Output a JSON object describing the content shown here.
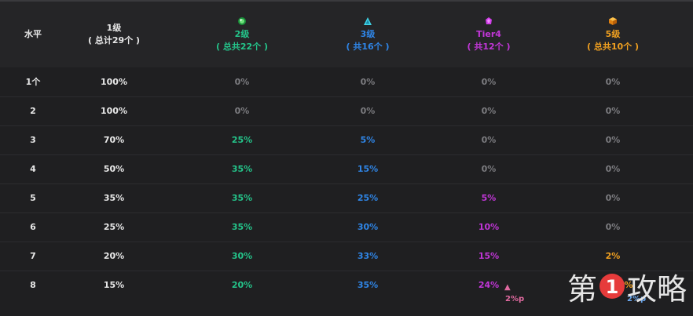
{
  "header": {
    "level_label": "水平",
    "tiers": [
      {
        "title": "1级",
        "subtitle": "( 总计29个 )",
        "color": "#e8e8e8",
        "icon": "none"
      },
      {
        "title": "2级",
        "subtitle": "( 总共22个 )",
        "color": "#24c48a",
        "icon": "green-orb-icon"
      },
      {
        "title": "3级",
        "subtitle": "( 共16个 )",
        "color": "#2f86e8",
        "icon": "cyan-triangle-icon"
      },
      {
        "title": "Tier4",
        "subtitle": "( 共12个 )",
        "color": "#c236d8",
        "icon": "purple-gem-icon"
      },
      {
        "title": "5级",
        "subtitle": "( 总共10个 )",
        "color": "#f0a020",
        "icon": "orange-cube-icon"
      }
    ]
  },
  "rows": [
    {
      "level": "1个",
      "t1": "100%",
      "t2": "0%",
      "t3": "0%",
      "t4": "0%",
      "t5": "0%"
    },
    {
      "level": "2",
      "t1": "100%",
      "t2": "0%",
      "t3": "0%",
      "t4": "0%",
      "t5": "0%"
    },
    {
      "level": "3",
      "t1": "70%",
      "t2": "25%",
      "t3": "5%",
      "t4": "0%",
      "t5": "0%"
    },
    {
      "level": "4",
      "t1": "50%",
      "t2": "35%",
      "t3": "15%",
      "t4": "0%",
      "t5": "0%"
    },
    {
      "level": "5",
      "t1": "35%",
      "t2": "35%",
      "t3": "25%",
      "t4": "5%",
      "t5": "0%"
    },
    {
      "level": "6",
      "t1": "25%",
      "t2": "35%",
      "t3": "30%",
      "t4": "10%",
      "t5": "0%"
    },
    {
      "level": "7",
      "t1": "20%",
      "t2": "30%",
      "t3": "33%",
      "t4": "15%",
      "t5": "2%"
    },
    {
      "level": "8",
      "t1": "15%",
      "t2": "20%",
      "t3": "35%",
      "t4": "24%",
      "t5": "%"
    }
  ],
  "row8_extras": {
    "a": "2%p",
    "b": "2%p"
  },
  "watermark": {
    "left": "第",
    "circle": "1",
    "right": "攻略"
  },
  "colors": {
    "background": "#1f1f21",
    "header_bg": "#252527",
    "zero_gray": "#7c7c80",
    "tier2": "#24c48a",
    "tier3": "#2f86e8",
    "tier4": "#c236d8",
    "tier5": "#f0a020",
    "watermark_red": "#e63b3b"
  }
}
